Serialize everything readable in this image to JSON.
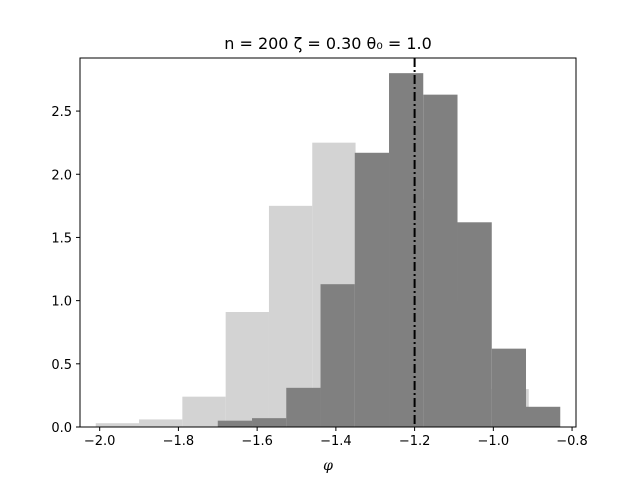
{
  "chart_data": {
    "type": "bar",
    "title": "n = 200 ζ = 0.30 θ₀ = 1.0",
    "xlabel": "φ",
    "ylabel": "",
    "xlim": [
      -2.05,
      -0.79
    ],
    "ylim": [
      0,
      2.92
    ],
    "grid": false,
    "legend": "none",
    "x_ticks": [
      -2.0,
      -1.8,
      -1.6,
      -1.4,
      -1.2,
      -1.0,
      -0.8
    ],
    "x_tick_labels": [
      "−2.0",
      "−1.8",
      "−1.6",
      "−1.4",
      "−1.2",
      "−1.0",
      "−0.8"
    ],
    "y_ticks": [
      0.0,
      0.5,
      1.0,
      1.5,
      2.0,
      2.5
    ],
    "y_tick_labels": [
      "0.0",
      "0.5",
      "1.0",
      "1.5",
      "2.0",
      "2.5"
    ],
    "reference_line": {
      "x": -1.2,
      "style": "dash-dot",
      "color": "#000000"
    },
    "series": [
      {
        "color": "#d3d3d3",
        "bins": [
          {
            "x0": -2.01,
            "x1": -1.9,
            "value": 0.03
          },
          {
            "x0": -1.9,
            "x1": -1.79,
            "value": 0.06
          },
          {
            "x0": -1.79,
            "x1": -1.68,
            "value": 0.24
          },
          {
            "x0": -1.68,
            "x1": -1.57,
            "value": 0.91
          },
          {
            "x0": -1.57,
            "x1": -1.46,
            "value": 1.75
          },
          {
            "x0": -1.46,
            "x1": -1.35,
            "value": 2.25
          },
          {
            "x0": -1.35,
            "x1": -1.24,
            "value": 2.13
          },
          {
            "x0": -1.24,
            "x1": -1.13,
            "value": 1.8
          },
          {
            "x0": -1.13,
            "x1": -1.02,
            "value": 1.0
          },
          {
            "x0": -1.02,
            "x1": -0.91,
            "value": 0.3
          }
        ]
      },
      {
        "color": "#808080",
        "bins": [
          {
            "x0": -1.7,
            "x1": -1.613,
            "value": 0.05
          },
          {
            "x0": -1.613,
            "x1": -1.526,
            "value": 0.07
          },
          {
            "x0": -1.526,
            "x1": -1.439,
            "value": 0.31
          },
          {
            "x0": -1.439,
            "x1": -1.352,
            "value": 1.13
          },
          {
            "x0": -1.352,
            "x1": -1.265,
            "value": 2.17
          },
          {
            "x0": -1.265,
            "x1": -1.178,
            "value": 2.8
          },
          {
            "x0": -1.178,
            "x1": -1.091,
            "value": 2.63
          },
          {
            "x0": -1.091,
            "x1": -1.004,
            "value": 1.62
          },
          {
            "x0": -1.004,
            "x1": -0.917,
            "value": 0.62
          },
          {
            "x0": -0.917,
            "x1": -0.83,
            "value": 0.16
          }
        ]
      }
    ]
  }
}
